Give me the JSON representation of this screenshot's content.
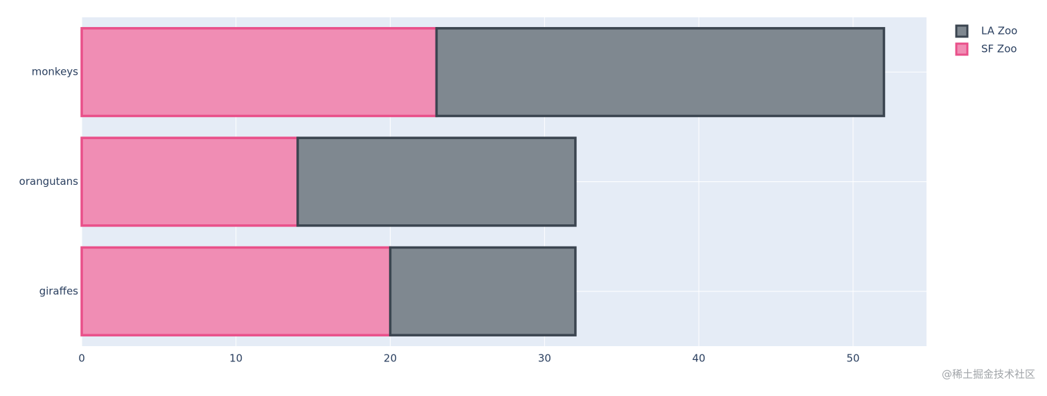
{
  "chart_data": {
    "type": "bar",
    "orientation": "horizontal",
    "barmode": "stack",
    "categories": [
      "giraffes",
      "orangutans",
      "monkeys"
    ],
    "series": [
      {
        "name": "SF Zoo",
        "color": "#f08db4",
        "line_color": "#e9508a",
        "values": [
          20,
          14,
          23
        ]
      },
      {
        "name": "LA Zoo",
        "color": "#7f8890",
        "line_color": "#3b4550",
        "values": [
          12,
          18,
          29
        ]
      }
    ],
    "xlim": [
      0,
      54.76
    ],
    "xticks": [
      0,
      10,
      20,
      30,
      40,
      50
    ],
    "grid": true,
    "legend": "top-right",
    "legend_order": "reversed",
    "watermark": "@稀土掘金技术社区"
  }
}
